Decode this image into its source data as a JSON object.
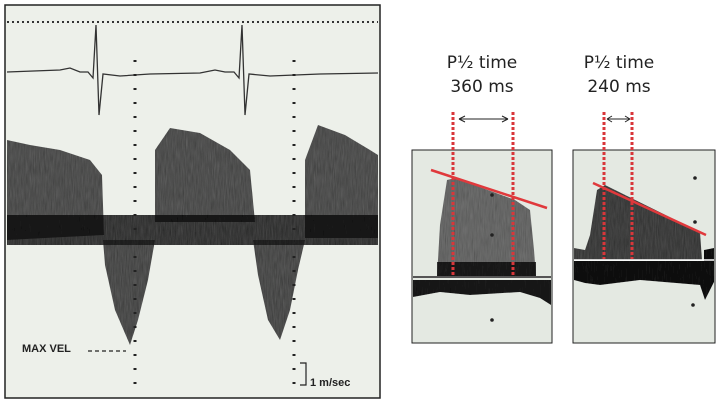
{
  "left_panel": {
    "max_vel_label": "MAX  VEL",
    "scale_label": "1 m/sec"
  },
  "panels": [
    {
      "title": "P½ time",
      "value": "360 ms"
    },
    {
      "title": "P½ time",
      "value": "240 ms"
    }
  ],
  "colors": {
    "marker": "#d9363a",
    "background": "#e6ebe4",
    "signal": "#1a1a1a"
  }
}
